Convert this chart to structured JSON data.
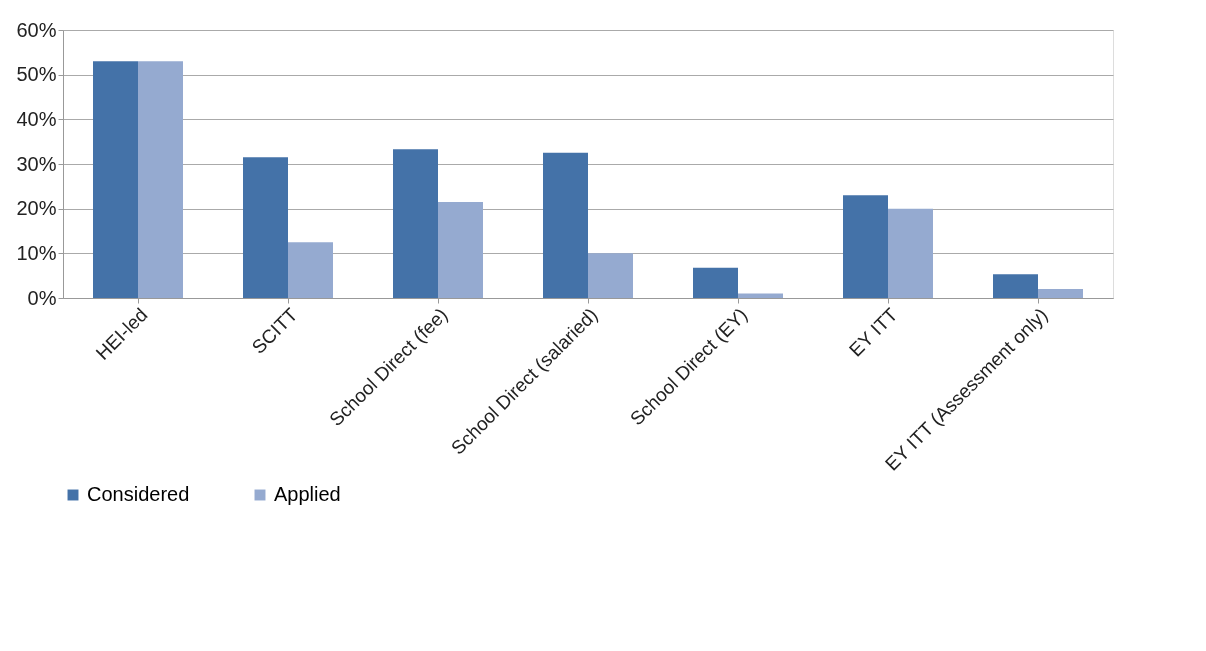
{
  "chart_data": {
    "type": "bar",
    "categories": [
      "HEI-led",
      "SCITT",
      "School Direct (fee)",
      "School Direct (salaried)",
      "School Direct (EY)",
      "EY ITT",
      "EY ITT (Assessment only)"
    ],
    "series": [
      {
        "name": "Considered",
        "color": "#4472a8",
        "values": [
          53,
          31.5,
          33.3,
          32.5,
          6.8,
          23,
          5.3
        ]
      },
      {
        "name": "Applied",
        "color": "#95aad0",
        "values": [
          53,
          12.5,
          21.5,
          10,
          1,
          20,
          2
        ]
      }
    ],
    "ylim": [
      0,
      60
    ],
    "yticks": [
      {
        "value": 0,
        "label": "0%"
      },
      {
        "value": 10,
        "label": "10%"
      },
      {
        "value": 20,
        "label": "20%"
      },
      {
        "value": 30,
        "label": "30%"
      },
      {
        "value": 40,
        "label": "40%"
      },
      {
        "value": 50,
        "label": "50%"
      },
      {
        "value": 60,
        "label": "60%"
      }
    ],
    "grid": "y",
    "legend": "bottom"
  }
}
